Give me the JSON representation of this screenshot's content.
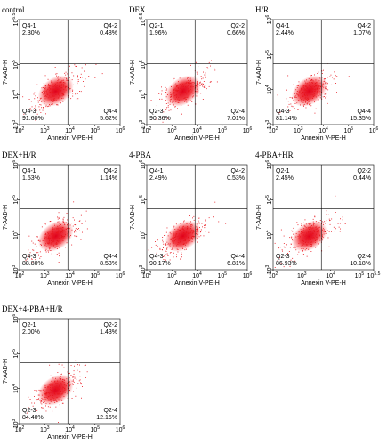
{
  "tick_base": "10",
  "panels": [
    {
      "title": "control",
      "x_label": "Annexin V-PE-H",
      "y_label": "7-AAD-H",
      "x_ticks": [
        "2",
        "3",
        "4",
        "5",
        "6"
      ],
      "y_ticks": [
        "3",
        "4",
        "5",
        "6.5"
      ],
      "quadrants": [
        {
          "name": "Q4-1",
          "percent": "2.30%"
        },
        {
          "name": "Q4-2",
          "percent": "0.48%"
        },
        {
          "name": "Q4-3",
          "percent": "91.60%"
        },
        {
          "name": "Q4-4",
          "percent": "5.62%"
        }
      ]
    },
    {
      "title": "DEX",
      "x_label": "Annexin V-PE-H",
      "y_label": "7-AAD-H",
      "x_ticks": [
        "2",
        "3",
        "4",
        "5",
        "6"
      ],
      "y_ticks": [
        "3",
        "4",
        "5",
        "6.5"
      ],
      "quadrants": [
        {
          "name": "Q2-1",
          "percent": "1.96%"
        },
        {
          "name": "Q2-2",
          "percent": "0.66%"
        },
        {
          "name": "Q2-3",
          "percent": "90.36%"
        },
        {
          "name": "Q2-4",
          "percent": "7.01%"
        }
      ]
    },
    {
      "title": "H/R",
      "x_label": "Annexin V-PE-H",
      "y_label": "7-AAD-H",
      "x_ticks": [
        "2",
        "3",
        "4",
        "5",
        "6"
      ],
      "y_ticks": [
        "3",
        "4",
        "5",
        "6"
      ],
      "quadrants": [
        {
          "name": "Q4-1",
          "percent": "2.44%"
        },
        {
          "name": "Q4-2",
          "percent": "1.07%"
        },
        {
          "name": "Q4-3",
          "percent": "81.14%"
        },
        {
          "name": "Q4-4",
          "percent": "15.35%"
        }
      ]
    },
    {
      "title": "DEX+H/R",
      "x_label": "Annexin V-PE-H",
      "y_label": "7-AAD-H",
      "x_ticks": [
        "2",
        "3",
        "4",
        "5",
        "6"
      ],
      "y_ticks": [
        "3",
        "4",
        "5",
        "6"
      ],
      "quadrants": [
        {
          "name": "Q4-1",
          "percent": "1.53%"
        },
        {
          "name": "Q4-2",
          "percent": "1.14%"
        },
        {
          "name": "Q4-3",
          "percent": "88.80%"
        },
        {
          "name": "Q4-4",
          "percent": "8.53%"
        }
      ]
    },
    {
      "title": "4-PBA",
      "x_label": "Annexin V-PE-H",
      "y_label": "7-AAD-H",
      "x_ticks": [
        "2",
        "3",
        "4",
        "5",
        "6"
      ],
      "y_ticks": [
        "3",
        "4",
        "5",
        "6"
      ],
      "quadrants": [
        {
          "name": "Q4-1",
          "percent": "2.49%"
        },
        {
          "name": "Q4-2",
          "percent": "0.53%"
        },
        {
          "name": "Q4-3",
          "percent": "90.17%"
        },
        {
          "name": "Q4-4",
          "percent": "6.81%"
        }
      ]
    },
    {
      "title": "4-PBA+HR",
      "x_label": "Annexin V-PE-H",
      "y_label": "7-AAD-H",
      "x_ticks": [
        "2",
        "3",
        "4",
        "5",
        "5.5"
      ],
      "y_ticks": [
        "3",
        "4",
        "5",
        "6"
      ],
      "quadrants": [
        {
          "name": "Q2-1",
          "percent": "2.45%"
        },
        {
          "name": "Q2-2",
          "percent": "0.44%"
        },
        {
          "name": "Q2-3",
          "percent": "86.93%"
        },
        {
          "name": "Q2-4",
          "percent": "10.18%"
        }
      ]
    },
    {
      "title": "DEX+4-PBA+H/R",
      "x_label": "Annexin V-PE-H",
      "y_label": "7-AAD-H",
      "x_ticks": [
        "2",
        "3",
        "4",
        "5",
        "6"
      ],
      "y_ticks": [
        "3",
        "4",
        "5",
        "6"
      ],
      "quadrants": [
        {
          "name": "Q2-1",
          "percent": "2.00%"
        },
        {
          "name": "Q2-2",
          "percent": "1.43%"
        },
        {
          "name": "Q2-3",
          "percent": "84.40%"
        },
        {
          "name": "Q2-4",
          "percent": "12.16%"
        }
      ]
    }
  ]
}
